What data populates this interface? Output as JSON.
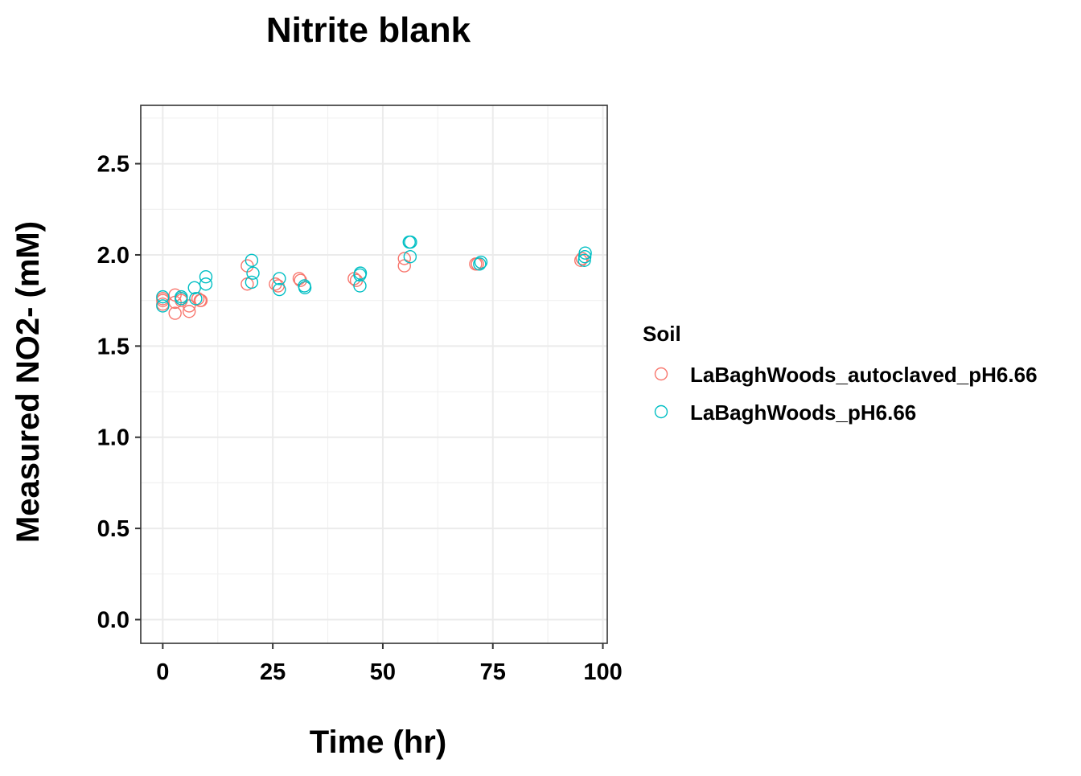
{
  "chart_data": {
    "type": "scatter",
    "title": "Nitrite blank",
    "xlabel": "Time (hr)",
    "ylabel": "Measured NO2- (mM)",
    "xlim": [
      -5,
      101
    ],
    "ylim": [
      -0.13,
      2.82
    ],
    "x_ticks": [
      0,
      25,
      50,
      75,
      100
    ],
    "y_ticks": [
      0.0,
      0.5,
      1.0,
      1.5,
      2.0,
      2.5
    ],
    "x_tick_labels": [
      "0",
      "25",
      "50",
      "75",
      "100"
    ],
    "y_tick_labels": [
      "0.0",
      "0.5",
      "1.0",
      "1.5",
      "2.0",
      "2.5"
    ],
    "grid": true,
    "legend": {
      "title": "Soil",
      "position": "right"
    },
    "series": [
      {
        "name": "LaBaghWoods_autoclaved_pH6.66",
        "color": "#F8766D",
        "marker": "open-circle",
        "points": [
          [
            0,
            1.75
          ],
          [
            0,
            1.73
          ],
          [
            0,
            1.76
          ],
          [
            2.8,
            1.68
          ],
          [
            2.8,
            1.78
          ],
          [
            2.8,
            1.74
          ],
          [
            4.2,
            1.76
          ],
          [
            4.2,
            1.75
          ],
          [
            6.0,
            1.69
          ],
          [
            6.0,
            1.72
          ],
          [
            8.0,
            1.76
          ],
          [
            8.5,
            1.75
          ],
          [
            8.7,
            1.75
          ],
          [
            19.2,
            1.84
          ],
          [
            19.2,
            1.94
          ],
          [
            25.6,
            1.84
          ],
          [
            26.2,
            1.83
          ],
          [
            31.0,
            1.87
          ],
          [
            31.3,
            1.86
          ],
          [
            43.5,
            1.87
          ],
          [
            44.0,
            1.86
          ],
          [
            54.9,
            1.98
          ],
          [
            54.9,
            1.94
          ],
          [
            71.1,
            1.95
          ],
          [
            71.5,
            1.95
          ],
          [
            95.0,
            1.97
          ],
          [
            95.3,
            1.98
          ]
        ]
      },
      {
        "name": "LaBaghWoods_pH6.66",
        "color": "#00BFC4",
        "marker": "open-circle",
        "points": [
          [
            0,
            1.77
          ],
          [
            0,
            1.72
          ],
          [
            4.2,
            1.77
          ],
          [
            4.2,
            1.76
          ],
          [
            7.2,
            1.82
          ],
          [
            7.5,
            1.76
          ],
          [
            9.8,
            1.88
          ],
          [
            9.8,
            1.84
          ],
          [
            20.2,
            1.97
          ],
          [
            20.2,
            1.85
          ],
          [
            20.5,
            1.9
          ],
          [
            26.5,
            1.87
          ],
          [
            26.5,
            1.81
          ],
          [
            32.2,
            1.83
          ],
          [
            32.3,
            1.82
          ],
          [
            44.8,
            1.83
          ],
          [
            44.8,
            1.89
          ],
          [
            44.9,
            1.9
          ],
          [
            56.0,
            2.07
          ],
          [
            56.3,
            2.07
          ],
          [
            56.2,
            1.99
          ],
          [
            72.0,
            1.95
          ],
          [
            72.3,
            1.96
          ],
          [
            95.8,
            1.97
          ],
          [
            95.9,
            1.99
          ],
          [
            96.0,
            2.01
          ]
        ]
      }
    ]
  }
}
